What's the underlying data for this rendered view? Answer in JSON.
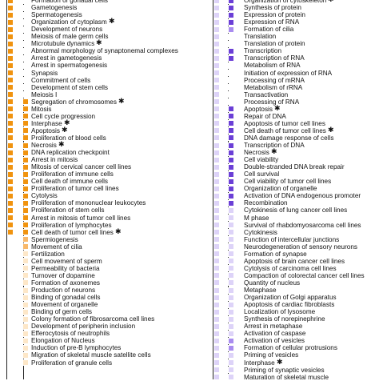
{
  "left_panel": {
    "rows": [
      {
        "label": "Formation of gonadal cells",
        "star": false,
        "level": [
          3,
          0
        ]
      },
      {
        "label": "Gametogenesis",
        "star": false,
        "level": [
          3,
          0
        ]
      },
      {
        "label": "Spermatogenesis",
        "star": false,
        "level": [
          3,
          0
        ]
      },
      {
        "label": "Organization of cytoplasm",
        "star": true,
        "level": [
          3,
          0
        ]
      },
      {
        "label": "Development of neurons",
        "star": false,
        "level": [
          3,
          0
        ]
      },
      {
        "label": "Meiosis of male germ cells",
        "star": false,
        "level": [
          3,
          0
        ]
      },
      {
        "label": "Microtubule dynamics",
        "star": true,
        "level": [
          3,
          0
        ]
      },
      {
        "label": "Abnormal morphology of synaptonemal complexes",
        "star": false,
        "level": [
          3,
          0
        ]
      },
      {
        "label": "Arrest in gametogenesis",
        "star": false,
        "level": [
          3,
          0
        ]
      },
      {
        "label": "Arrest in spermatogenesis",
        "star": false,
        "level": [
          3,
          0
        ]
      },
      {
        "label": "Synapsis",
        "star": false,
        "level": [
          3,
          0
        ]
      },
      {
        "label": "Commitment of cells",
        "star": false,
        "level": [
          3,
          0
        ]
      },
      {
        "label": "Development of stem cells",
        "star": false,
        "level": [
          3,
          0
        ]
      },
      {
        "label": "Meiosis I",
        "star": false,
        "level": [
          3,
          0
        ]
      },
      {
        "label": "Segregation of chromosomes",
        "star": true,
        "level": [
          3,
          3
        ]
      },
      {
        "label": "Mitosis",
        "star": false,
        "level": [
          3,
          3
        ]
      },
      {
        "label": "Cell cycle progression",
        "star": false,
        "level": [
          3,
          3
        ]
      },
      {
        "label": "Interphase",
        "star": true,
        "level": [
          3,
          3
        ]
      },
      {
        "label": "Apoptosis",
        "star": true,
        "level": [
          3,
          3
        ]
      },
      {
        "label": "Proliferation of blood cells",
        "star": false,
        "level": [
          3,
          3
        ]
      },
      {
        "label": "Necrosis",
        "star": true,
        "level": [
          3,
          3
        ]
      },
      {
        "label": "DNA replication checkpoint",
        "star": false,
        "level": [
          3,
          3
        ]
      },
      {
        "label": "Arrest in mitosis",
        "star": false,
        "level": [
          3,
          3
        ]
      },
      {
        "label": "Mitosis of cervical cancer cell lines",
        "star": false,
        "level": [
          3,
          3
        ]
      },
      {
        "label": "Proliferation of immune cells",
        "star": false,
        "level": [
          3,
          3
        ]
      },
      {
        "label": "Cell death of immune cells",
        "star": false,
        "level": [
          3,
          3
        ]
      },
      {
        "label": "Proliferation of tumor cell lines",
        "star": false,
        "level": [
          3,
          3
        ]
      },
      {
        "label": "Cytolysis",
        "star": false,
        "level": [
          3,
          3
        ]
      },
      {
        "label": "Proliferation of mononuclear leukocytes",
        "star": false,
        "level": [
          3,
          3
        ]
      },
      {
        "label": "Proliferation of stem cells",
        "star": false,
        "level": [
          3,
          3
        ]
      },
      {
        "label": "Arrest in mitosis of tumor cell lines",
        "star": false,
        "level": [
          3,
          3
        ]
      },
      {
        "label": "Proliferation of lymphocytes",
        "star": false,
        "level": [
          3,
          3
        ]
      },
      {
        "label": "Cell death of tumor cell lines",
        "star": true,
        "level": [
          3,
          3
        ]
      },
      {
        "label": "Spermiogenesis",
        "star": false,
        "level": [
          0,
          2
        ]
      },
      {
        "label": "Movement of cilia",
        "star": false,
        "level": [
          0,
          2
        ]
      },
      {
        "label": "Fertilization",
        "star": false,
        "level": [
          0,
          1
        ]
      },
      {
        "label": "Cell movement of sperm",
        "star": false,
        "level": [
          0,
          1
        ]
      },
      {
        "label": "Permeability of bacteria",
        "star": false,
        "level": [
          0,
          1
        ]
      },
      {
        "label": "Turnover of dopamine",
        "star": false,
        "level": [
          0,
          1
        ]
      },
      {
        "label": "Formation of axonemes",
        "star": false,
        "level": [
          0,
          1
        ]
      },
      {
        "label": "Production of neurons",
        "star": false,
        "level": [
          0,
          1
        ]
      },
      {
        "label": "Binding of gonadal cells",
        "star": false,
        "level": [
          0,
          1
        ]
      },
      {
        "label": "Movement of organelle",
        "star": false,
        "level": [
          0,
          1
        ]
      },
      {
        "label": "Binding of germ cells",
        "star": false,
        "level": [
          0,
          1
        ]
      },
      {
        "label": "Colony formation of fibrosarcoma cell lines",
        "star": false,
        "level": [
          0,
          1
        ]
      },
      {
        "label": "Development of peripherin inclusion",
        "star": false,
        "level": [
          0,
          1
        ]
      },
      {
        "label": "Efferocytosis of neutrophils",
        "star": false,
        "level": [
          0,
          1
        ]
      },
      {
        "label": "Elongation of Nucleus",
        "star": false,
        "level": [
          0,
          1
        ]
      },
      {
        "label": "Induction of pre-B lymphocytes",
        "star": false,
        "level": [
          0,
          1
        ]
      },
      {
        "label": "Migration of skeletal muscle satellite cells",
        "star": false,
        "level": [
          0,
          1
        ]
      },
      {
        "label": "Proliferation of granule cells",
        "star": false,
        "level": [
          0,
          1
        ]
      }
    ]
  },
  "right_panel": {
    "rows": [
      {
        "label": "Organization of cytoskeleton",
        "star": true,
        "level": [
          1,
          3
        ]
      },
      {
        "label": "Synthesis of protein",
        "star": false,
        "level": [
          1,
          3
        ]
      },
      {
        "label": "Expression of protein",
        "star": false,
        "level": [
          1,
          3
        ]
      },
      {
        "label": "Expression of RNA",
        "star": false,
        "level": [
          1,
          3
        ]
      },
      {
        "label": "Formation of cilia",
        "star": false,
        "level": [
          1,
          2
        ]
      },
      {
        "label": "Translation",
        "star": false,
        "level": [
          1,
          0
        ]
      },
      {
        "label": "Translation of protein",
        "star": false,
        "level": [
          1,
          0
        ]
      },
      {
        "label": "Transcription",
        "star": false,
        "level": [
          1,
          3
        ]
      },
      {
        "label": "Transcription of RNA",
        "star": false,
        "level": [
          1,
          3
        ]
      },
      {
        "label": "Metabolism of RNA",
        "star": false,
        "level": [
          1,
          0
        ]
      },
      {
        "label": "Initiation of expression of RNA",
        "star": false,
        "level": [
          1,
          0
        ]
      },
      {
        "label": "Processing of mRNA",
        "star": false,
        "level": [
          1,
          0
        ]
      },
      {
        "label": "Metabolism of rRNA",
        "star": false,
        "level": [
          1,
          0
        ]
      },
      {
        "label": "Transactivation",
        "star": false,
        "level": [
          1,
          0
        ]
      },
      {
        "label": "Processing of RNA",
        "star": false,
        "level": [
          1,
          0
        ]
      },
      {
        "label": "Apoptosis",
        "star": true,
        "level": [
          1,
          3
        ]
      },
      {
        "label": "Repair of DNA",
        "star": false,
        "level": [
          1,
          3
        ]
      },
      {
        "label": "Apoptosis of tumor cell lines",
        "star": false,
        "level": [
          1,
          3
        ]
      },
      {
        "label": "Cell death of tumor cell lines",
        "star": true,
        "level": [
          1,
          3
        ]
      },
      {
        "label": "DNA damage response of cells",
        "star": false,
        "level": [
          1,
          3
        ]
      },
      {
        "label": "Transcription of DNA",
        "star": false,
        "level": [
          1,
          3
        ]
      },
      {
        "label": "Necrosis",
        "star": true,
        "level": [
          1,
          3
        ]
      },
      {
        "label": "Cell viability",
        "star": false,
        "level": [
          1,
          3
        ]
      },
      {
        "label": "Double-stranded DNA break repair",
        "star": false,
        "level": [
          1,
          3
        ]
      },
      {
        "label": "Cell survival",
        "star": false,
        "level": [
          1,
          3
        ]
      },
      {
        "label": "Cell viability of tumor cell lines",
        "star": false,
        "level": [
          1,
          3
        ]
      },
      {
        "label": "Organization of organelle",
        "star": false,
        "level": [
          1,
          3
        ]
      },
      {
        "label": "Activation of DNA endogenous promoter",
        "star": false,
        "level": [
          1,
          3
        ]
      },
      {
        "label": "Recombination",
        "star": false,
        "level": [
          1,
          3
        ]
      },
      {
        "label": "Cytokinesis of lung cancer cell lines",
        "star": false,
        "level": [
          1,
          1
        ]
      },
      {
        "label": "M phase",
        "star": false,
        "level": [
          1,
          1
        ]
      },
      {
        "label": "Survival of rhabdomyosarcoma cell lines",
        "star": false,
        "level": [
          1,
          1
        ]
      },
      {
        "label": "Cytokinesis",
        "star": false,
        "level": [
          1,
          1
        ]
      },
      {
        "label": "Function of intercellular junctions",
        "star": false,
        "level": [
          1,
          1
        ]
      },
      {
        "label": "Neurodegeneration of sensory neurons",
        "star": false,
        "level": [
          1,
          1
        ]
      },
      {
        "label": "Formation of synapse",
        "star": false,
        "level": [
          1,
          1
        ]
      },
      {
        "label": "Apoptosis of brain cancer cell lines",
        "star": false,
        "level": [
          1,
          1
        ]
      },
      {
        "label": "Cytolysis of carcinoma cell lines",
        "star": false,
        "level": [
          1,
          1
        ]
      },
      {
        "label": "Compaction of colorectal cancer cell lines",
        "star": false,
        "level": [
          1,
          1
        ]
      },
      {
        "label": "Quantity of nucleus",
        "star": false,
        "level": [
          1,
          1
        ]
      },
      {
        "label": "Metaphase",
        "star": false,
        "level": [
          1,
          1
        ]
      },
      {
        "label": "Organization of Golgi apparatus",
        "star": false,
        "level": [
          1,
          1
        ]
      },
      {
        "label": "Apoptosis of cardiac fibroblasts",
        "star": false,
        "level": [
          1,
          1
        ]
      },
      {
        "label": "Localization of lysosome",
        "star": false,
        "level": [
          1,
          1
        ]
      },
      {
        "label": "Synthesis of norepinephrine",
        "star": false,
        "level": [
          1,
          1
        ]
      },
      {
        "label": "Arrest in metaphase",
        "star": false,
        "level": [
          1,
          1
        ]
      },
      {
        "label": "Activation of caspase",
        "star": false,
        "level": [
          1,
          1
        ]
      },
      {
        "label": "Activation of vesicles",
        "star": false,
        "level": [
          1,
          2
        ]
      },
      {
        "label": "Formation of cellular protrusions",
        "star": false,
        "level": [
          1,
          2
        ]
      },
      {
        "label": "Priming of vesicles",
        "star": false,
        "level": [
          1,
          1
        ]
      },
      {
        "label": "Interphase",
        "star": true,
        "level": [
          1,
          1
        ]
      },
      {
        "label": "Priming of synaptic vesicles",
        "star": false,
        "level": [
          1,
          1
        ]
      },
      {
        "label": "Maturation of skeletal muscle",
        "star": false,
        "level": [
          1,
          1
        ]
      }
    ]
  },
  "colors": {
    "orange": [
      "#ffffff",
      "#fde7c8",
      "#f8b86a",
      "#f0930f"
    ],
    "purple": [
      "#ffffff",
      "#ddd3f8",
      "#a98cef",
      "#6b3fd6"
    ]
  }
}
